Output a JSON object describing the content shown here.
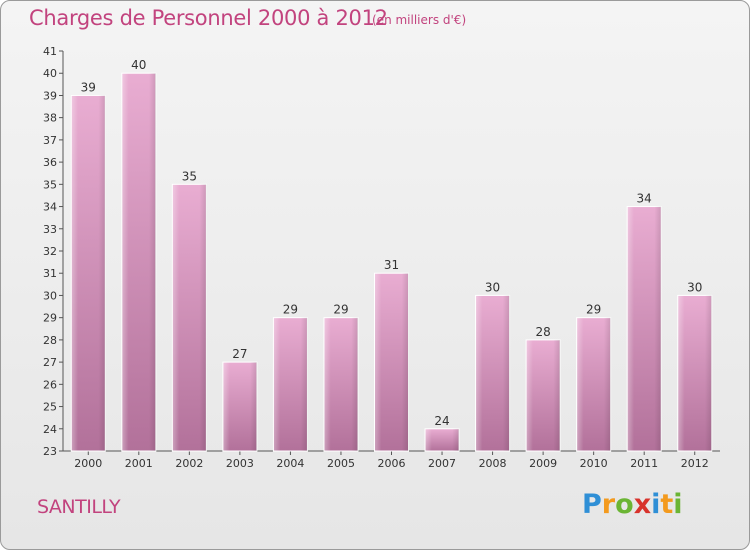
{
  "header": {
    "title": "Charges de Personnel 2000 à 2012",
    "subtitle": "(en milliers d'€)"
  },
  "footer": {
    "city": "SANTILLY",
    "logo": "Proxiti"
  },
  "colors": {
    "accent": "#c2437e",
    "bar_light": "#e7a9cf",
    "bar_dark": "#b5739a"
  },
  "chart_data": {
    "type": "bar",
    "title": "Charges de Personnel 2000 à 2012",
    "subtitle": "(en milliers d'€)",
    "xlabel": "",
    "ylabel": "",
    "categories": [
      "2000",
      "2001",
      "2002",
      "2003",
      "2004",
      "2005",
      "2006",
      "2007",
      "2008",
      "2009",
      "2010",
      "2011",
      "2012"
    ],
    "values": [
      39,
      40,
      35,
      27,
      29,
      29,
      31,
      24,
      30,
      28,
      29,
      34,
      30
    ],
    "data_labels": [
      "39",
      "40",
      "35",
      "27",
      "29",
      "29",
      "31",
      "24",
      "30",
      "28",
      "29",
      "34",
      "30"
    ],
    "ylim": [
      23,
      41
    ],
    "yticks": [
      23,
      24,
      25,
      26,
      27,
      28,
      29,
      30,
      31,
      32,
      33,
      34,
      35,
      36,
      37,
      38,
      39,
      40,
      41
    ],
    "grid": false,
    "legend": "none"
  }
}
